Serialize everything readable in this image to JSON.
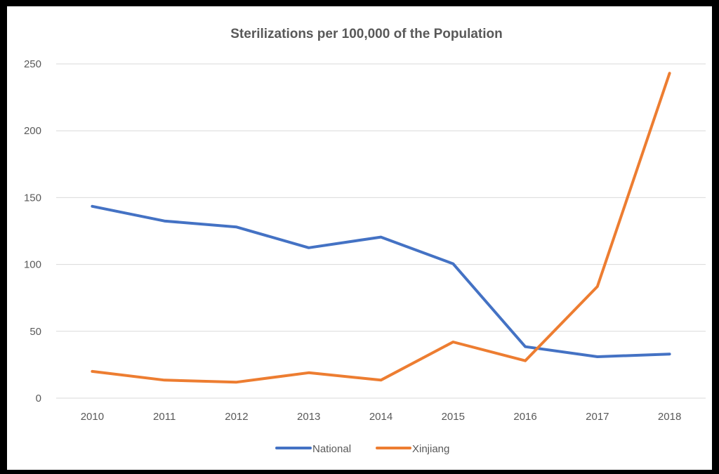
{
  "chart_data": {
    "type": "line",
    "title": "Sterilizations per 100,000 of the Population",
    "xlabel": "",
    "ylabel": "",
    "categories": [
      "2010",
      "2011",
      "2012",
      "2013",
      "2014",
      "2015",
      "2016",
      "2017",
      "2018"
    ],
    "y_ticks": [
      "0",
      "50",
      "100",
      "150",
      "200",
      "250"
    ],
    "ylim": [
      0,
      250
    ],
    "grid": true,
    "legend_position": "bottom",
    "series": [
      {
        "name": "National",
        "color": "#4472c4",
        "values": [
          143.5,
          132.5,
          128,
          112.5,
          120.5,
          100.5,
          38.5,
          31,
          33
        ]
      },
      {
        "name": "Xinjiang",
        "color": "#ed7d31",
        "values": [
          20,
          13.5,
          12,
          19,
          13.5,
          42,
          28,
          83.5,
          243
        ]
      }
    ]
  }
}
